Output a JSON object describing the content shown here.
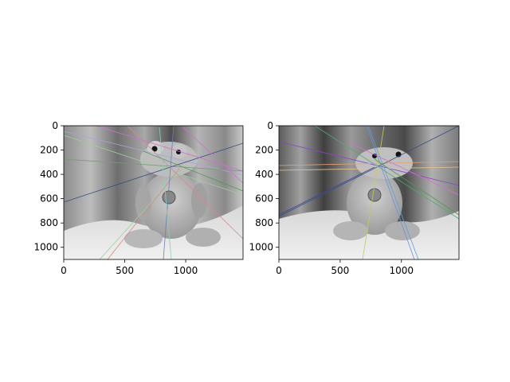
{
  "figure": {
    "panels": [
      {
        "id": "left",
        "description_colors": {
          "lines": [
            "#7b6bd6",
            "#4c9a4c",
            "#7a9a7a",
            "#3a4c8a",
            "#d88a8a",
            "#9ad09a",
            "#b0a0e0",
            "#6f7fb0",
            "#d070d0",
            "#99aa66",
            "#8ad0b0"
          ]
        },
        "x_ticks": [
          "0",
          "500",
          "1000"
        ],
        "y_ticks": [
          "0",
          "200",
          "400",
          "600",
          "800",
          "1000"
        ],
        "x_range": [
          0,
          1470
        ],
        "y_range": [
          1100,
          0
        ]
      },
      {
        "id": "right",
        "description_colors": {
          "lines": [
            "#8b44c8",
            "#4c9a4c",
            "#3a4c8a",
            "#e8a070",
            "#e8c090",
            "#c8c85a",
            "#7090d8",
            "#5aa0d8",
            "#d070d0",
            "#4cae6c",
            "#c0c0ff"
          ]
        },
        "x_ticks": [
          "0",
          "500",
          "1000"
        ],
        "y_ticks": [
          "0",
          "200",
          "400",
          "600",
          "800",
          "1000"
        ],
        "x_range": [
          0,
          1470
        ],
        "y_range": [
          1100,
          0
        ]
      }
    ]
  }
}
